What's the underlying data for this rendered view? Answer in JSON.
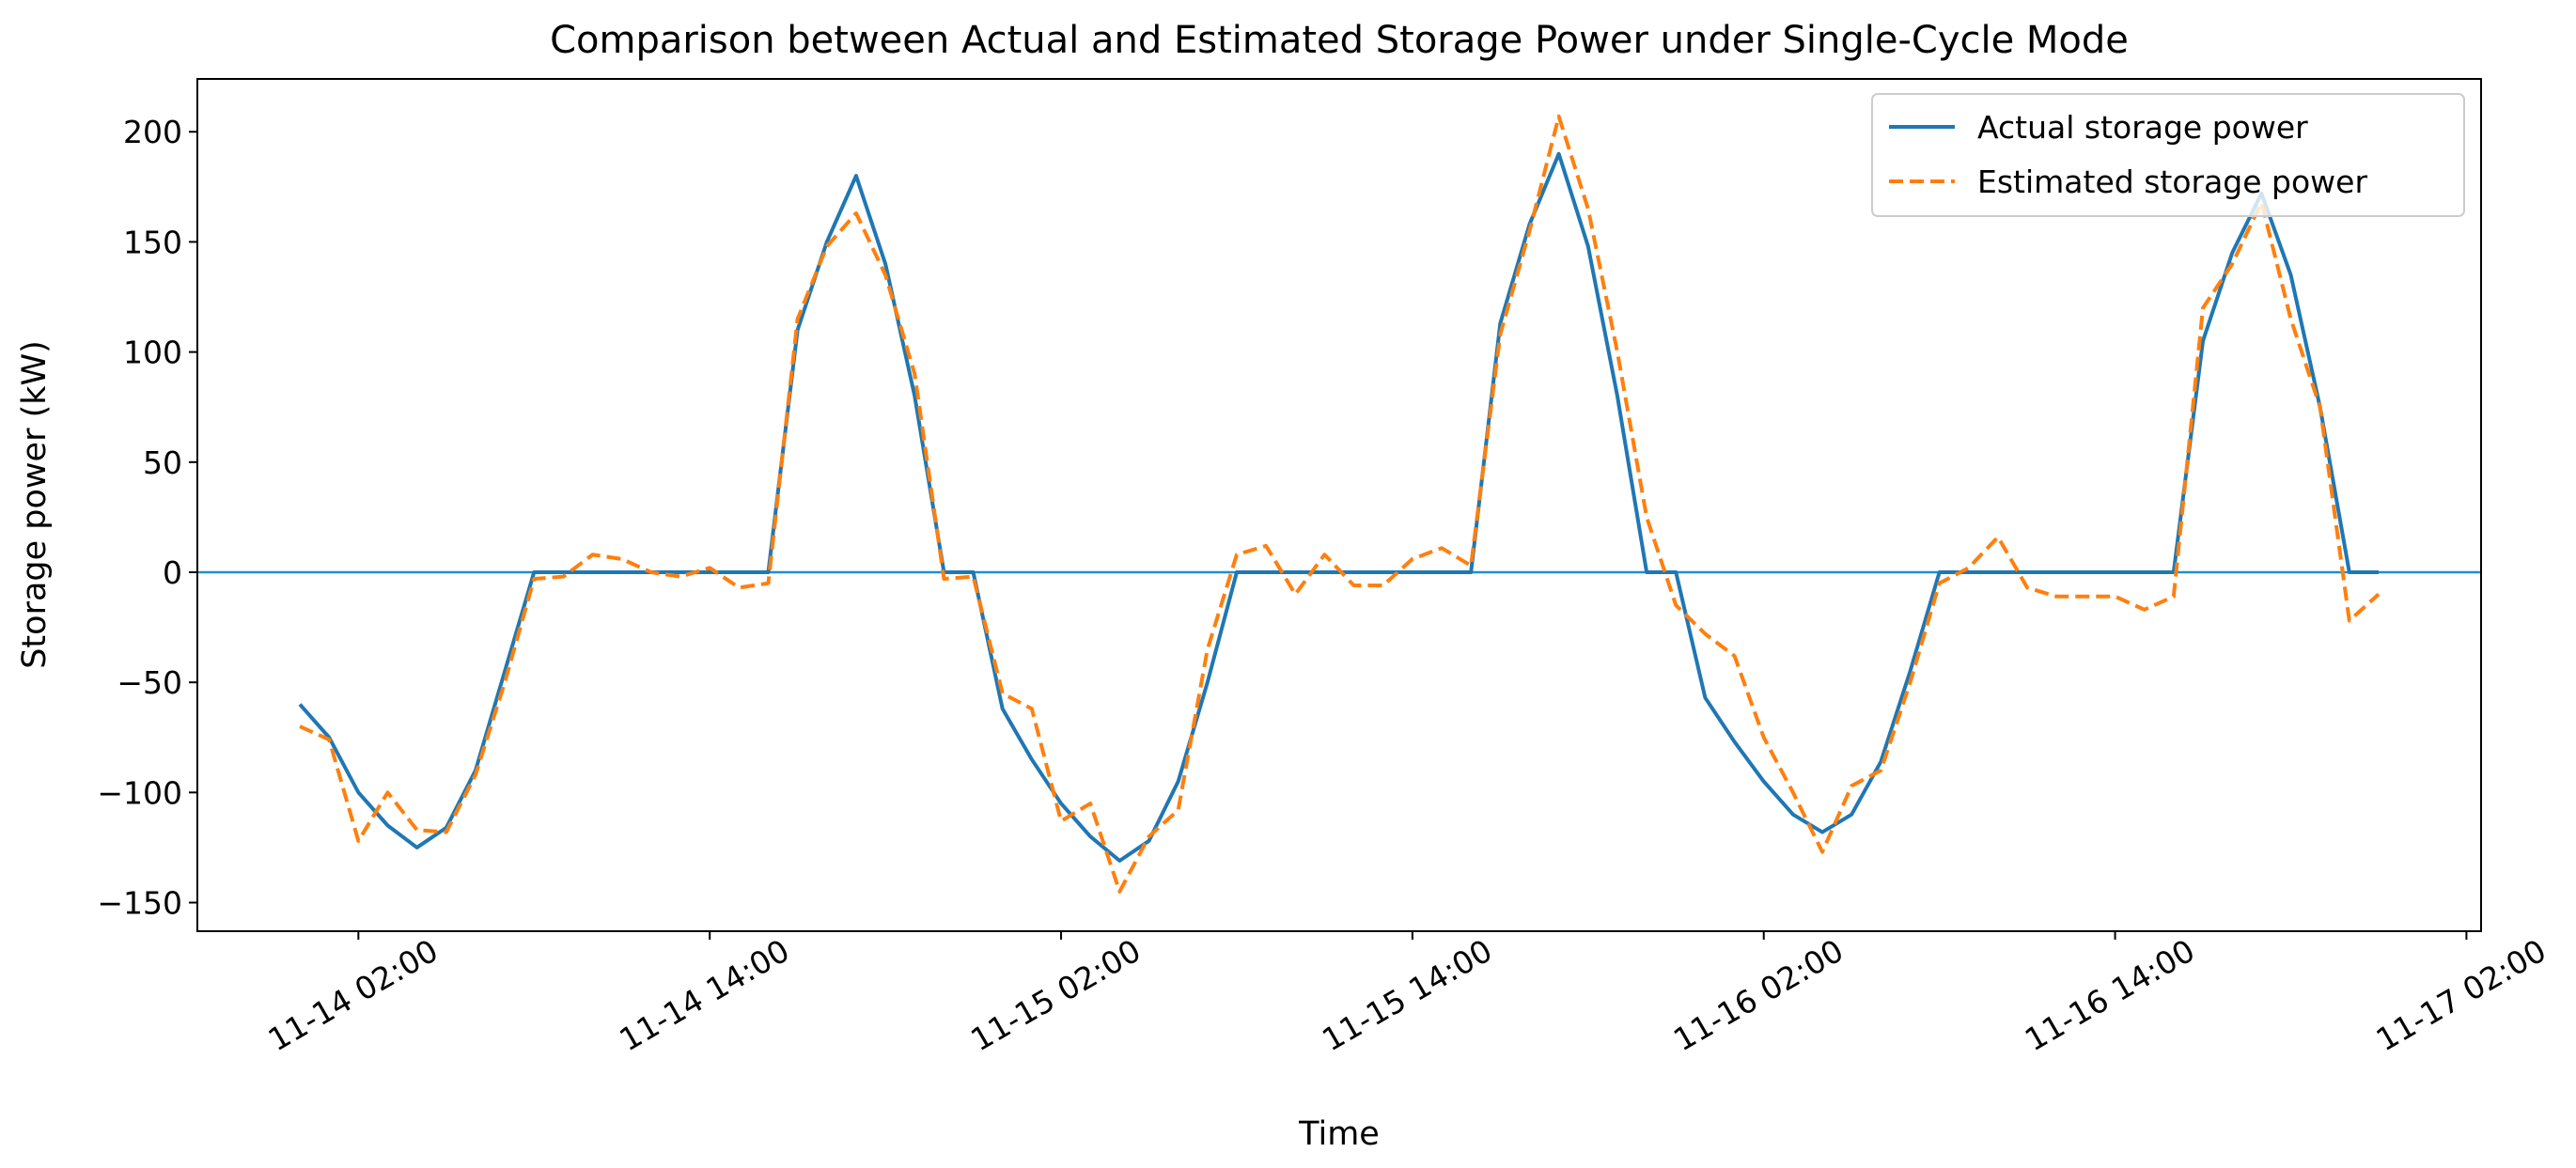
{
  "chart_data": {
    "type": "line",
    "title": "Comparison between Actual and Estimated Storage Power under Single-Cycle Mode",
    "xlabel": "Time",
    "ylabel": "Storage power (kW)",
    "x": [
      "11-14 00:00",
      "11-14 01:00",
      "11-14 02:00",
      "11-14 03:00",
      "11-14 04:00",
      "11-14 05:00",
      "11-14 06:00",
      "11-14 07:00",
      "11-14 08:00",
      "11-14 09:00",
      "11-14 10:00",
      "11-14 11:00",
      "11-14 12:00",
      "11-14 13:00",
      "11-14 14:00",
      "11-14 15:00",
      "11-14 16:00",
      "11-14 17:00",
      "11-14 18:00",
      "11-14 19:00",
      "11-14 20:00",
      "11-14 21:00",
      "11-14 22:00",
      "11-14 23:00",
      "11-15 00:00",
      "11-15 01:00",
      "11-15 02:00",
      "11-15 03:00",
      "11-15 04:00",
      "11-15 05:00",
      "11-15 06:00",
      "11-15 07:00",
      "11-15 08:00",
      "11-15 09:00",
      "11-15 10:00",
      "11-15 11:00",
      "11-15 12:00",
      "11-15 13:00",
      "11-15 14:00",
      "11-15 15:00",
      "11-15 16:00",
      "11-15 17:00",
      "11-15 18:00",
      "11-15 19:00",
      "11-15 20:00",
      "11-15 21:00",
      "11-15 22:00",
      "11-15 23:00",
      "11-16 00:00",
      "11-16 01:00",
      "11-16 02:00",
      "11-16 03:00",
      "11-16 04:00",
      "11-16 05:00",
      "11-16 06:00",
      "11-16 07:00",
      "11-16 08:00",
      "11-16 09:00",
      "11-16 10:00",
      "11-16 11:00",
      "11-16 12:00",
      "11-16 13:00",
      "11-16 14:00",
      "11-16 15:00",
      "11-16 16:00",
      "11-16 17:00",
      "11-16 18:00",
      "11-16 19:00",
      "11-16 20:00",
      "11-16 21:00",
      "11-16 22:00",
      "11-16 23:00"
    ],
    "series": [
      {
        "name": "Actual storage power",
        "color": "#1f77b4",
        "linestyle": "solid",
        "values": [
          -60,
          -75,
          -100,
          -115,
          -125,
          -116,
          -90,
          -45,
          0,
          0,
          0,
          0,
          0,
          0,
          0,
          0,
          0,
          110,
          150,
          180,
          140,
          80,
          0,
          0,
          -62,
          -85,
          -105,
          -120,
          -131,
          -122,
          -95,
          -50,
          0,
          0,
          0,
          0,
          0,
          0,
          0,
          0,
          0,
          113,
          158,
          190,
          148,
          80,
          0,
          0,
          -57,
          -77,
          -95,
          -110,
          -118,
          -110,
          -86,
          -45,
          0,
          0,
          0,
          0,
          0,
          0,
          0,
          0,
          0,
          105,
          145,
          172,
          135,
          75,
          0,
          0
        ]
      },
      {
        "name": "Estimated storage power",
        "color": "#ff7f0e",
        "linestyle": "dashed",
        "values": [
          -70,
          -76,
          -122,
          -100,
          -117,
          -118,
          -92,
          -50,
          -3,
          -2,
          8,
          6,
          0,
          -2,
          2,
          -7,
          -5,
          115,
          148,
          163,
          135,
          90,
          -3,
          -2,
          -55,
          -62,
          -113,
          -105,
          -145,
          -120,
          -108,
          -35,
          8,
          12,
          -10,
          8,
          -6,
          -6,
          6,
          11,
          3,
          108,
          155,
          207,
          165,
          100,
          25,
          -15,
          -28,
          -38,
          -75,
          -100,
          -127,
          -97,
          -90,
          -50,
          -5,
          2,
          16,
          -7,
          -11,
          -11,
          -11,
          -17,
          -11,
          120,
          140,
          168,
          115,
          75,
          -22,
          -10
        ]
      }
    ],
    "hline": 0,
    "hline_color": "#1f8fd0",
    "xlim": [
      "11-13 20:30",
      "11-17 02:30"
    ],
    "xticks": [
      "11-14 02:00",
      "11-14 14:00",
      "11-15 02:00",
      "11-15 14:00",
      "11-16 02:00",
      "11-16 14:00",
      "11-17 02:00"
    ],
    "ylim": [
      -163,
      224
    ],
    "yticks": [
      {
        "value": -150,
        "label": "−150"
      },
      {
        "value": -100,
        "label": "−100"
      },
      {
        "value": -50,
        "label": "−50"
      },
      0,
      50,
      100,
      150,
      200
    ],
    "legend": "upper right"
  }
}
